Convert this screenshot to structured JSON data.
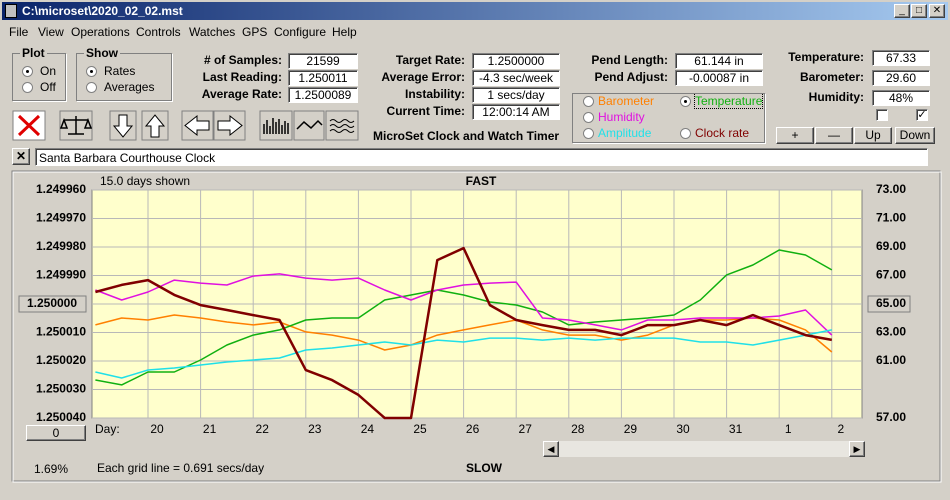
{
  "window": {
    "title": "C:\\microset\\2020_02_02.mst"
  },
  "menu": [
    "File",
    "View",
    "Operations",
    "Controls",
    "Watches",
    "GPS",
    "Configure",
    "Help"
  ],
  "plot_group": {
    "title": "Plot",
    "options": [
      "On",
      "Off"
    ],
    "selected": 0
  },
  "show_group": {
    "title": "Show",
    "options": [
      "Rates",
      "Averages"
    ],
    "selected": 0
  },
  "readouts": [
    {
      "label": "# of Samples:",
      "value": "21599"
    },
    {
      "label": "Last Reading:",
      "value": "1.250011"
    },
    {
      "label": "Average Rate:",
      "value": "1.2500089"
    },
    {
      "label": "Target Rate:",
      "value": "1.2500000"
    },
    {
      "label": "Average Error:",
      "value": "-4.3 sec/week"
    },
    {
      "label": "Instability:",
      "value": "1 secs/day"
    },
    {
      "label": "Current Time:",
      "value": "12:00:14 AM"
    },
    {
      "label": "Pend Length:",
      "value": "61.144 in"
    },
    {
      "label": "Pend Adjust:",
      "value": "-0.00087 in"
    },
    {
      "label": "Temperature:",
      "value": "67.33"
    },
    {
      "label": "Barometer:",
      "value": "29.60"
    },
    {
      "label": "Humidity:",
      "value": "48%"
    }
  ],
  "checkboxes": [
    false,
    true
  ],
  "app_title": "MicroSet Clock and Watch Timer",
  "buttons": [
    "+",
    "—",
    "Up",
    "Down"
  ],
  "watch_name": "Santa Barbara Courthouse Clock",
  "status": {
    "offset_button": "0",
    "percent": "1.69%"
  },
  "chart_data": {
    "type": "line",
    "days_shown": "15.0 days shown",
    "top_label": "FAST",
    "bottom_label": "SLOW",
    "x_label": "Day:",
    "grid_note": "Each grid line = 0.691 secs/day",
    "categories": [
      null,
      null,
      "20",
      null,
      "21",
      null,
      "22",
      null,
      "23",
      null,
      "24",
      null,
      "25",
      null,
      "26",
      null,
      "27",
      null,
      "28",
      null,
      "29",
      null,
      "30",
      null,
      "31",
      null,
      "1",
      null,
      "2",
      null
    ],
    "ylim": [
      1.25004,
      1.24996
    ],
    "yticks": [
      {
        "value": 1.24996,
        "label": "1.249960"
      },
      {
        "value": 1.24997,
        "label": "1.249970"
      },
      {
        "value": 1.24998,
        "label": "1.249980"
      },
      {
        "value": 1.24999,
        "label": "1.249990"
      },
      {
        "value": 1.25,
        "label": "1.250000"
      },
      {
        "value": 1.25001,
        "label": "1.250010"
      },
      {
        "value": 1.25002,
        "label": "1.250020"
      },
      {
        "value": 1.25003,
        "label": "1.250030"
      },
      {
        "value": 1.25004,
        "label": "1.250040"
      }
    ],
    "y2lim": [
      57,
      73
    ],
    "y2ticks": [
      {
        "value": 73,
        "label": "73.00"
      },
      {
        "value": 71,
        "label": "71.00"
      },
      {
        "value": 69,
        "label": "69.00"
      },
      {
        "value": 67,
        "label": "67.00"
      },
      {
        "value": 65,
        "label": "65.00"
      },
      {
        "value": 63,
        "label": "63.00"
      },
      {
        "value": 61,
        "label": "61.00"
      },
      {
        "value": 57,
        "label": "57.00"
      }
    ],
    "grid": true,
    "selected_series": 1,
    "series": [
      {
        "name": "Barometer",
        "color": "#ff8000",
        "axis": "y2",
        "values": [
          63.53,
          64.02,
          63.88,
          64.23,
          64.02,
          63.74,
          63.53,
          63.74,
          63.04,
          62.82,
          62.47,
          61.77,
          62.12,
          62.82,
          63.18,
          63.53,
          63.88,
          63.18,
          62.82,
          62.82,
          62.47,
          62.82,
          63.53,
          63.88,
          63.88,
          64.02,
          63.88,
          63.18,
          61.63,
          null
        ]
      },
      {
        "name": "Temperature",
        "color": "#10b010",
        "axis": "y2",
        "values": [
          59.67,
          59.32,
          60.23,
          60.23,
          61.07,
          62.12,
          62.82,
          63.18,
          63.88,
          64.02,
          64.02,
          65.28,
          65.63,
          65.98,
          65.63,
          65.14,
          64.93,
          64.44,
          63.53,
          63.74,
          63.88,
          64.02,
          64.23,
          65.28,
          67.04,
          67.74,
          68.79,
          68.44,
          67.39,
          null
        ]
      },
      {
        "name": "Humidity",
        "color": "#e010e0",
        "axis": "y2",
        "values": [
          65.98,
          65.28,
          65.84,
          66.68,
          66.47,
          66.33,
          66.96,
          67.11,
          66.82,
          66.68,
          66.82,
          65.98,
          65.28,
          65.98,
          66.33,
          66.47,
          66.54,
          64.02,
          63.88,
          63.53,
          63.18,
          63.88,
          63.88,
          64.02,
          64.02,
          64.02,
          64.16,
          64.58,
          62.82,
          null
        ]
      },
      {
        "name": "Amplitude",
        "color": "#20e0e8",
        "axis": "y2",
        "values": [
          60.23,
          59.81,
          60.37,
          60.51,
          60.72,
          60.93,
          61.07,
          61.21,
          61.77,
          61.91,
          62.12,
          62.33,
          62.12,
          62.47,
          62.33,
          62.61,
          62.61,
          62.47,
          62.61,
          62.47,
          62.61,
          62.61,
          62.61,
          62.33,
          62.33,
          62.12,
          62.47,
          62.82,
          63.18,
          null
        ]
      },
      {
        "name": "Clock rate",
        "color": "#800000",
        "values": [
          1.2499958,
          1.2499933,
          1.2499916,
          1.2499968,
          1.2500004,
          1.2500021,
          1.2500039,
          1.2500056,
          1.2500232,
          1.2500267,
          1.2500319,
          1.25004,
          1.25004,
          1.2499846,
          1.2499804,
          1.2500004,
          1.2500056,
          1.2500074,
          1.2500091,
          1.2500091,
          1.2500109,
          1.2500074,
          1.2500074,
          1.2500056,
          1.2500074,
          1.2500039,
          1.2500074,
          1.2500109,
          1.2500126,
          null
        ]
      }
    ]
  }
}
